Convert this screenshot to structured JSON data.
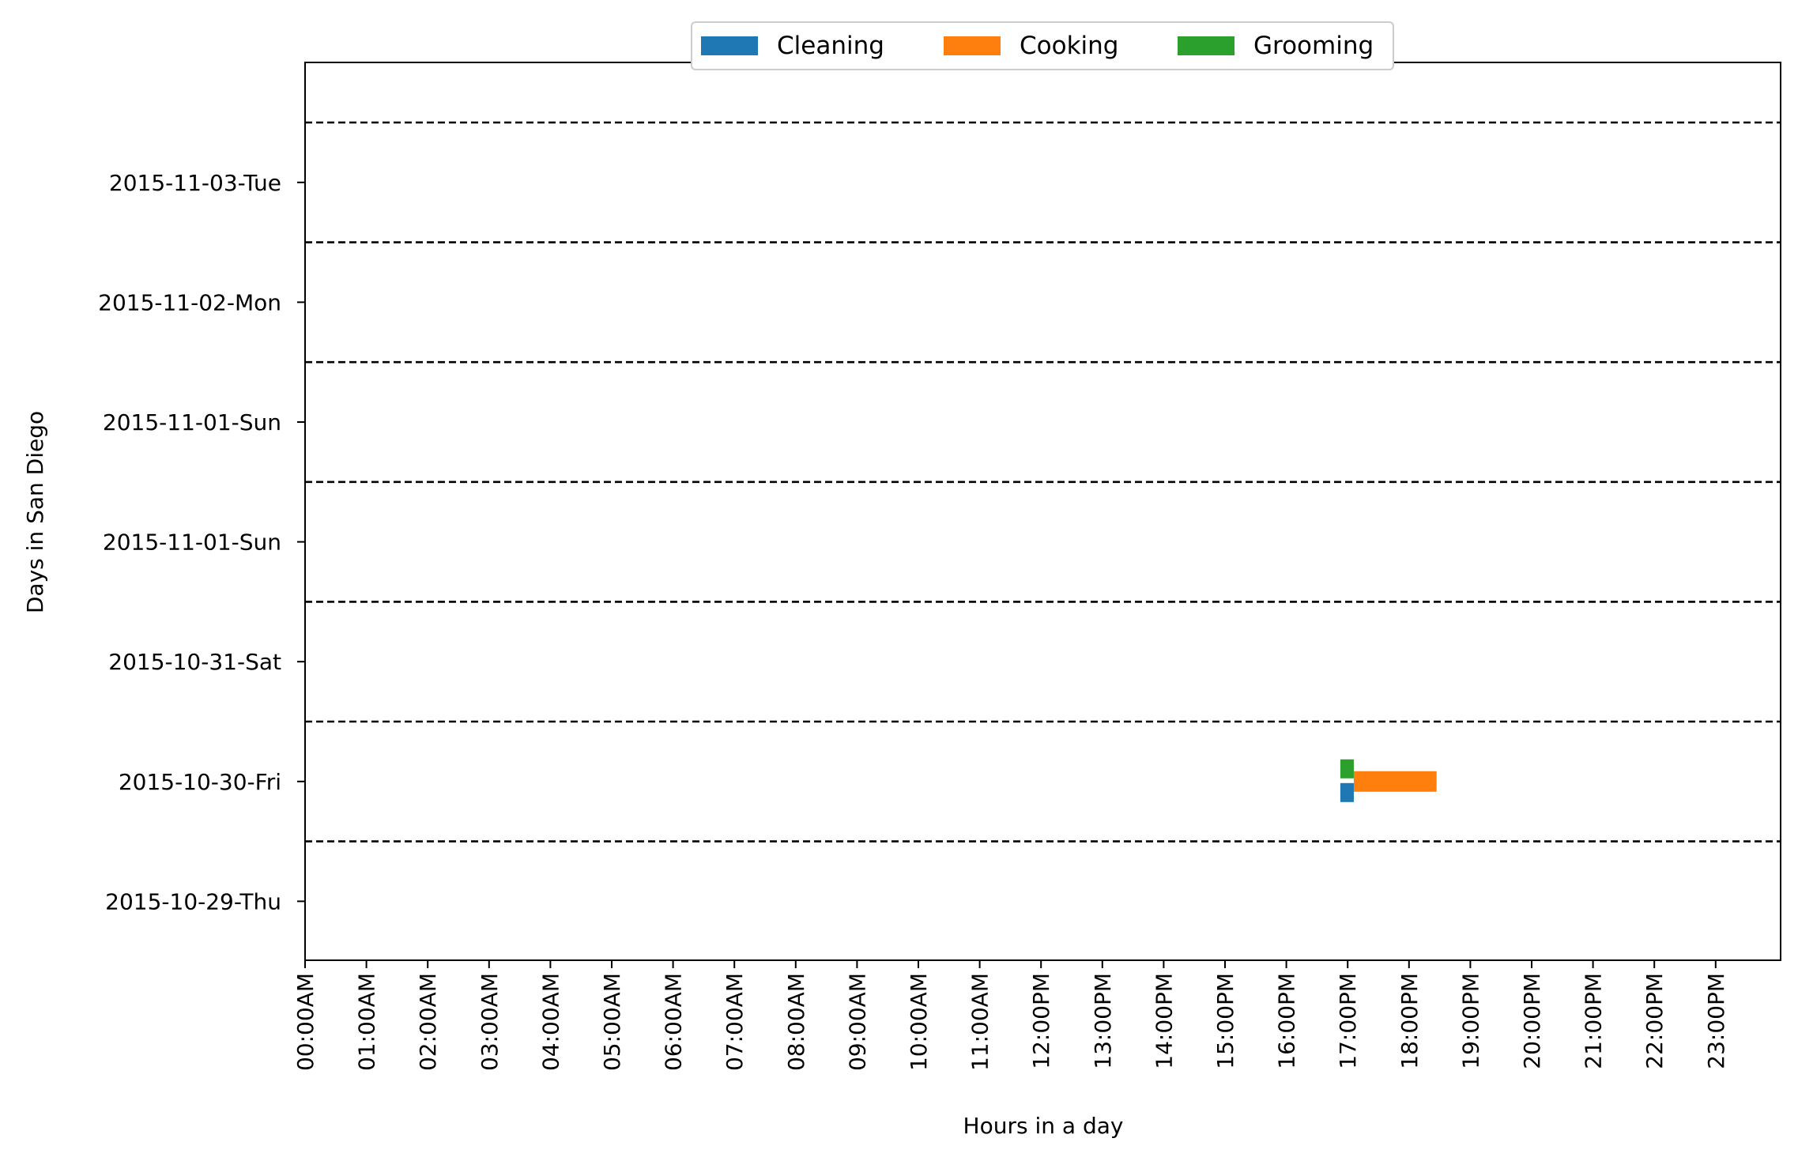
{
  "chart_data": {
    "type": "bar",
    "orientation": "horizontal-timeline",
    "xlabel": "Hours in a day",
    "ylabel": "Days in San Diego",
    "xlim": [
      0,
      24
    ],
    "x_ticks": [
      "00:00AM",
      "01:00AM",
      "02:00AM",
      "03:00AM",
      "04:00AM",
      "05:00AM",
      "06:00AM",
      "07:00AM",
      "08:00AM",
      "09:00AM",
      "10:00AM",
      "11:00AM",
      "12:00PM",
      "13:00PM",
      "14:00PM",
      "15:00PM",
      "16:00PM",
      "17:00PM",
      "18:00PM",
      "19:00PM",
      "20:00PM",
      "21:00PM",
      "22:00PM",
      "23:00PM"
    ],
    "y_categories": [
      "2015-10-29-Thu",
      "2015-10-30-Fri",
      "2015-10-31-Sat",
      "2015-11-01-Sun",
      "2015-11-01-Sun",
      "2015-11-02-Mon",
      "2015-11-03-Tue"
    ],
    "grid": "dashed separators between days",
    "legend": {
      "placement": "top-center",
      "entries": [
        {
          "name": "Cleaning",
          "color": "#1f77b4"
        },
        {
          "name": "Cooking",
          "color": "#ff7f0e"
        },
        {
          "name": "Grooming",
          "color": "#2ca02c"
        }
      ]
    },
    "series": [
      {
        "name": "Cleaning",
        "color": "#1f77b4",
        "intervals": [
          {
            "day_index": 1,
            "start": 16.88,
            "end": 17.1,
            "lane": "lower"
          }
        ]
      },
      {
        "name": "Cooking",
        "color": "#ff7f0e",
        "intervals": [
          {
            "day_index": 1,
            "start": 17.1,
            "end": 18.45,
            "lane": "center"
          }
        ]
      },
      {
        "name": "Grooming",
        "color": "#2ca02c",
        "intervals": [
          {
            "day_index": 1,
            "start": 16.88,
            "end": 17.1,
            "lane": "upper"
          }
        ]
      }
    ]
  }
}
